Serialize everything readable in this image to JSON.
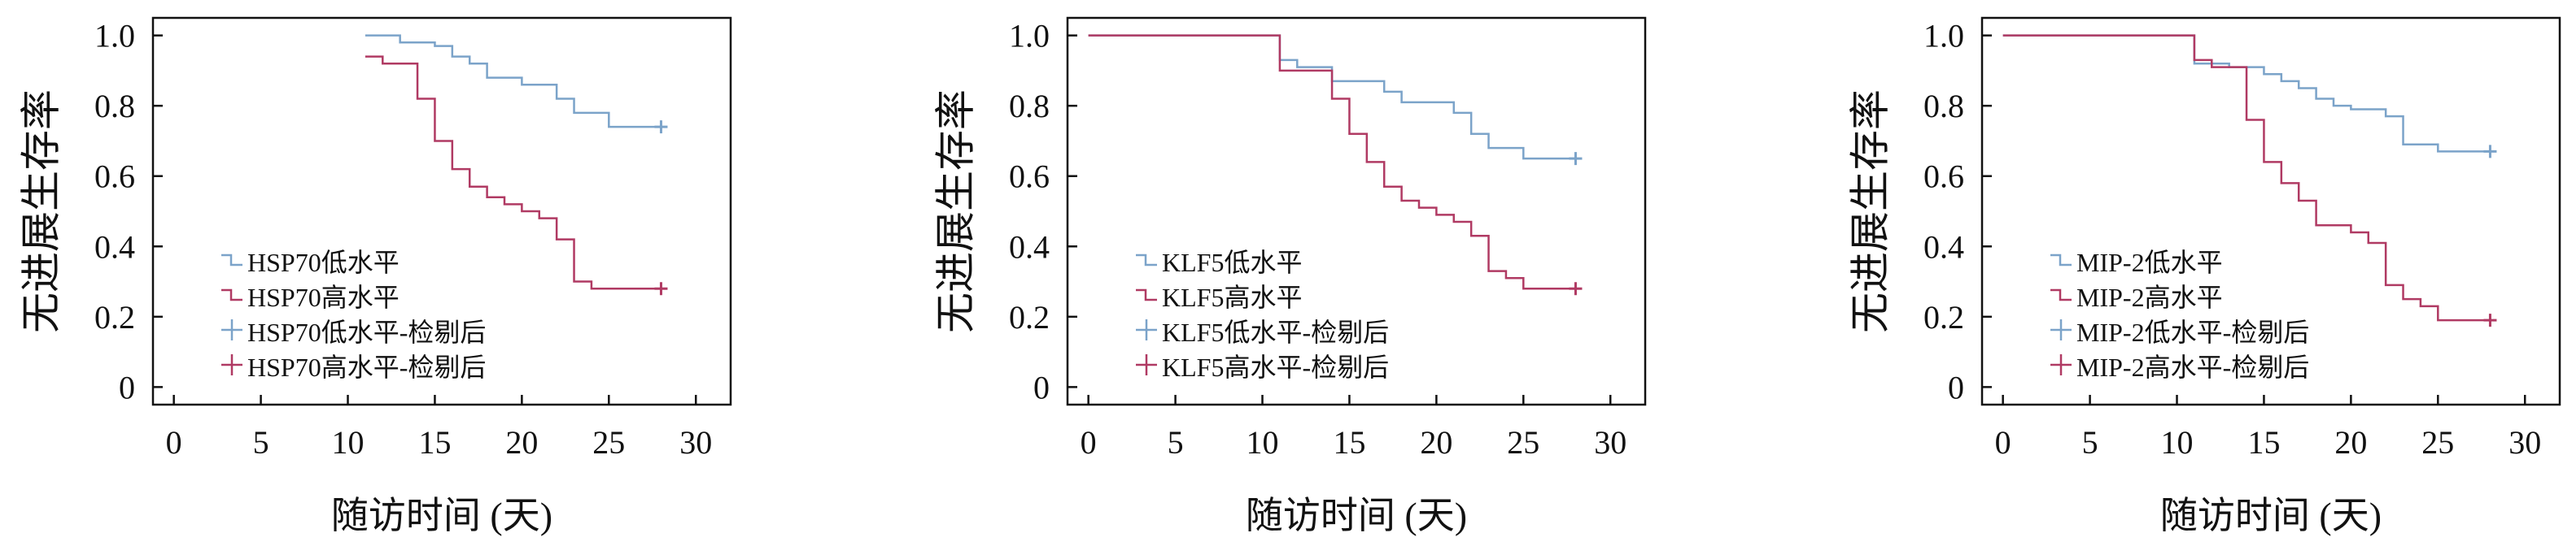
{
  "colors": {
    "low": "#7BA3C9",
    "high": "#B03A63",
    "axis": "#111111"
  },
  "chart_data": [
    {
      "type": "line",
      "step": true,
      "xlabel": "随访时间 (天)",
      "ylabel": "无进展生存率",
      "xlim": [
        -1.2,
        32
      ],
      "ylim": [
        -0.05,
        1.05
      ],
      "xticks": [
        0,
        5,
        10,
        15,
        20,
        25,
        30
      ],
      "yticks": [
        0,
        0.2,
        0.4,
        0.6,
        0.8,
        1.0
      ],
      "ytick_labels": [
        "0",
        "0.2",
        "0.4",
        "0.6",
        "0.8",
        "1.0"
      ],
      "legend_position": "bottom-left",
      "legend": [
        "HSP70低水平",
        "HSP70高水平",
        "HSP70低水平-检剔后",
        "HSP70高水平-检剔后"
      ],
      "series": [
        {
          "name": "HSP70低水平",
          "color_key": "low",
          "x": [
            11,
            13,
            15,
            16,
            17,
            18,
            20,
            22,
            23,
            25,
            28
          ],
          "y": [
            1.0,
            0.98,
            0.97,
            0.94,
            0.92,
            0.88,
            0.86,
            0.82,
            0.78,
            0.74,
            0.74
          ]
        },
        {
          "name": "HSP70高水平",
          "color_key": "high",
          "x": [
            11,
            12,
            14,
            15,
            16,
            17,
            18,
            19,
            20,
            21,
            22,
            23,
            24,
            28
          ],
          "y": [
            0.94,
            0.92,
            0.82,
            0.7,
            0.62,
            0.57,
            0.54,
            0.52,
            0.5,
            0.48,
            0.42,
            0.3,
            0.28,
            0.28
          ]
        }
      ],
      "censored": [
        {
          "name": "HSP70低水平-检剔后",
          "color_key": "low",
          "x": [
            28
          ],
          "y": [
            0.74
          ]
        },
        {
          "name": "HSP70高水平-检剔后",
          "color_key": "high",
          "x": [
            28
          ],
          "y": [
            0.28
          ]
        }
      ]
    },
    {
      "type": "line",
      "step": true,
      "xlabel": "随访时间 (天)",
      "ylabel": "无进展生存率",
      "xlim": [
        -1.2,
        32
      ],
      "ylim": [
        -0.05,
        1.05
      ],
      "xticks": [
        0,
        5,
        10,
        15,
        20,
        25,
        30
      ],
      "yticks": [
        0,
        0.2,
        0.4,
        0.6,
        0.8,
        1.0
      ],
      "ytick_labels": [
        "0",
        "0.2",
        "0.4",
        "0.6",
        "0.8",
        "1.0"
      ],
      "legend_position": "bottom-left",
      "legend": [
        "KLF5低水平",
        "KLF5高水平",
        "KLF5低水平-检剔后",
        "KLF5高水平-检剔后"
      ],
      "series": [
        {
          "name": "KLF5低水平",
          "color_key": "low",
          "x": [
            0,
            11,
            12,
            14,
            17,
            18,
            21,
            22,
            23,
            25,
            28
          ],
          "y": [
            1.0,
            0.93,
            0.91,
            0.87,
            0.84,
            0.81,
            0.78,
            0.72,
            0.68,
            0.65,
            0.65
          ]
        },
        {
          "name": "KLF5高水平",
          "color_key": "high",
          "x": [
            0,
            11,
            14,
            15,
            16,
            17,
            18,
            19,
            20,
            21,
            22,
            23,
            24,
            25,
            28
          ],
          "y": [
            1.0,
            0.9,
            0.82,
            0.72,
            0.64,
            0.57,
            0.53,
            0.51,
            0.49,
            0.47,
            0.43,
            0.33,
            0.31,
            0.28,
            0.28
          ]
        }
      ],
      "censored": [
        {
          "name": "KLF5低水平-检剔后",
          "color_key": "low",
          "x": [
            28
          ],
          "y": [
            0.65
          ]
        },
        {
          "name": "KLF5高水平-检剔后",
          "color_key": "high",
          "x": [
            28
          ],
          "y": [
            0.28
          ]
        }
      ]
    },
    {
      "type": "line",
      "step": true,
      "xlabel": "随访时间 (天)",
      "ylabel": "无进展生存率",
      "xlim": [
        -1.2,
        32
      ],
      "ylim": [
        -0.05,
        1.05
      ],
      "xticks": [
        0,
        5,
        10,
        15,
        20,
        25,
        30
      ],
      "yticks": [
        0,
        0.2,
        0.4,
        0.6,
        0.8,
        1.0
      ],
      "ytick_labels": [
        "0",
        "0.2",
        "0.4",
        "0.6",
        "0.8",
        "1.0"
      ],
      "legend_position": "bottom-left",
      "legend": [
        "MIP-2低水平",
        "MIP-2高水平",
        "MIP-2低水平-检剔后",
        "MIP-2高水平-检剔后"
      ],
      "series": [
        {
          "name": "MIP-2低水平",
          "color_key": "low",
          "x": [
            0,
            11,
            13,
            15,
            16,
            17,
            18,
            19,
            20,
            22,
            23,
            25,
            28
          ],
          "y": [
            1.0,
            0.92,
            0.91,
            0.89,
            0.87,
            0.85,
            0.82,
            0.8,
            0.79,
            0.77,
            0.69,
            0.67,
            0.67
          ]
        },
        {
          "name": "MIP-2高水平",
          "color_key": "high",
          "x": [
            0,
            11,
            12,
            14,
            15,
            16,
            17,
            18,
            20,
            21,
            22,
            23,
            24,
            25,
            28
          ],
          "y": [
            1.0,
            0.93,
            0.91,
            0.76,
            0.64,
            0.58,
            0.53,
            0.46,
            0.44,
            0.41,
            0.29,
            0.25,
            0.23,
            0.19,
            0.19
          ]
        }
      ],
      "censored": [
        {
          "name": "MIP-2低水平-检剔后",
          "color_key": "low",
          "x": [
            28
          ],
          "y": [
            0.67
          ]
        },
        {
          "name": "MIP-2高水平-检剔后",
          "color_key": "high",
          "x": [
            28
          ],
          "y": [
            0.19
          ]
        }
      ]
    }
  ]
}
